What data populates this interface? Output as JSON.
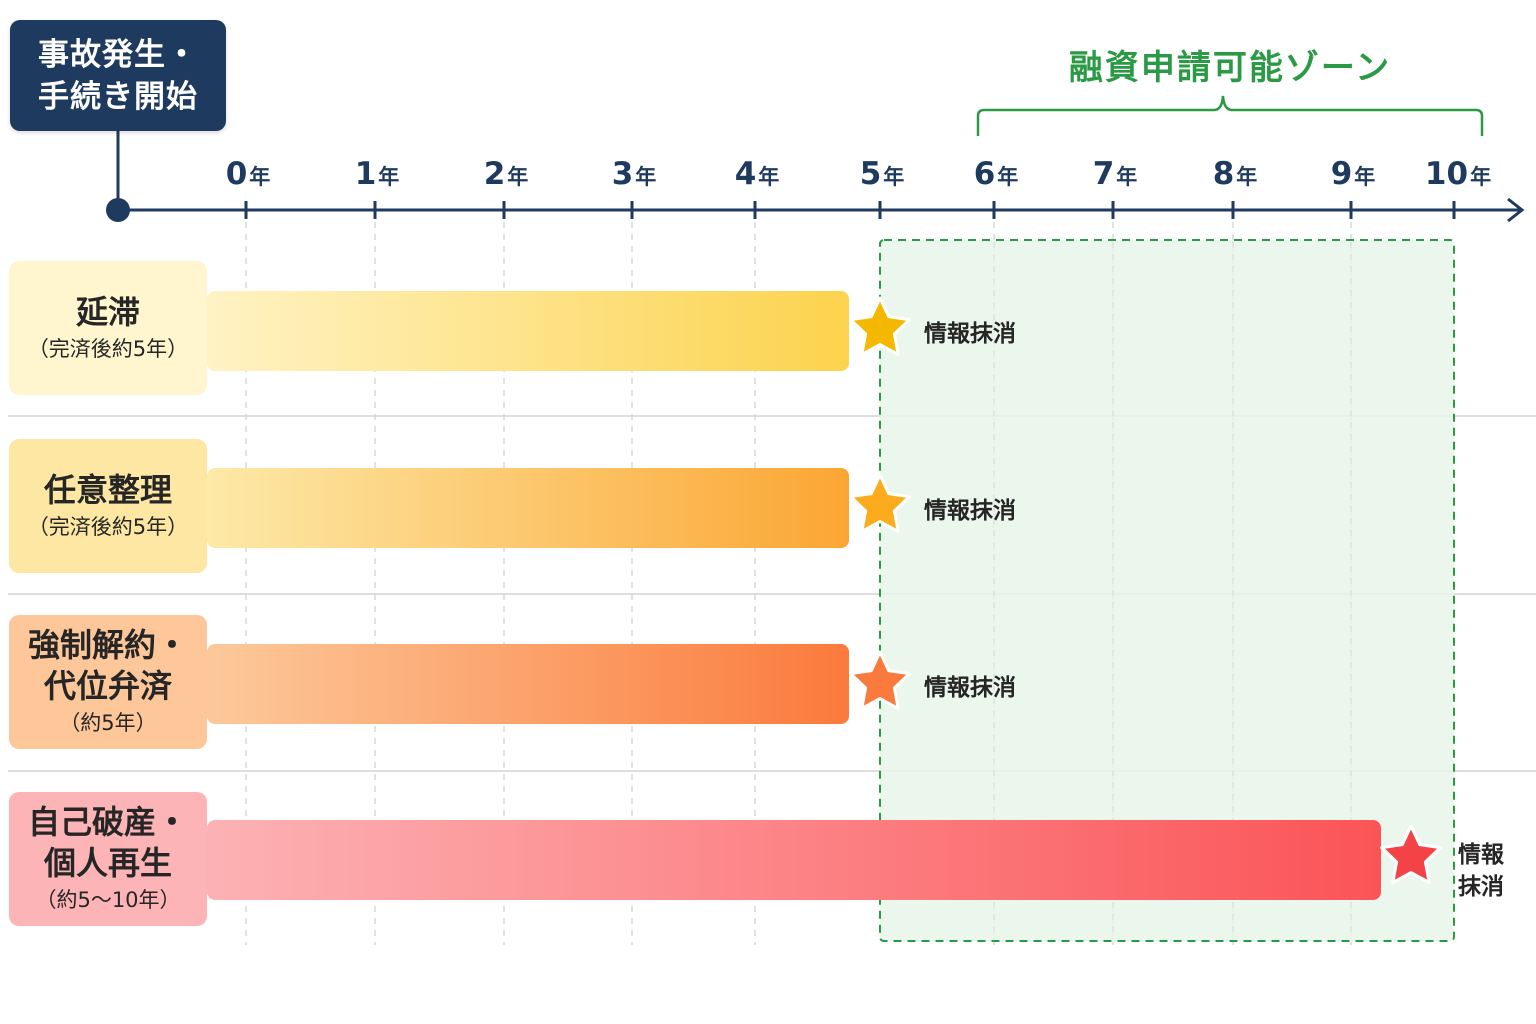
{
  "start": {
    "line1": "事故発生・",
    "line2": "手続き開始"
  },
  "zone": {
    "title": "融資申請可能ゾーン"
  },
  "axis": {
    "unit": "年",
    "ticks": [
      "0",
      "1",
      "2",
      "3",
      "4",
      "5",
      "6",
      "7",
      "8",
      "9",
      "10"
    ]
  },
  "categories": [
    {
      "name_line1": "延滞",
      "name_line2": "",
      "sub": "（完済後約5年）",
      "marker_label": "情報抹消",
      "marker_label_line1": "",
      "marker_label_line2": "",
      "color_from": "#fff3c4",
      "color_to": "#fcd34d",
      "star_color": "#f5b800",
      "box_color": "#fff6cf"
    },
    {
      "name_line1": "任意整理",
      "name_line2": "",
      "sub": "（完済後約5年）",
      "marker_label": "情報抹消",
      "marker_label_line1": "",
      "marker_label_line2": "",
      "color_from": "#fde9a8",
      "color_to": "#fba633",
      "star_color": "#fbab1c",
      "box_color": "#fde7a3"
    },
    {
      "name_line1": "強制解約・",
      "name_line2": "代位弁済",
      "sub": "（約5年）",
      "marker_label": "情報抹消",
      "marker_label_line1": "",
      "marker_label_line2": "",
      "color_from": "#fcc99a",
      "color_to": "#fb7a3c",
      "star_color": "#f97a3c",
      "box_color": "#fdc79a"
    },
    {
      "name_line1": "自己破産・",
      "name_line2": "個人再生",
      "sub": "（約5〜10年）",
      "marker_label": "",
      "marker_label_line1": "情報",
      "marker_label_line2": "抹消",
      "color_from": "#fcb2b4",
      "color_to": "#fb5457",
      "star_color": "#f44346",
      "box_color": "#fdb4b6"
    }
  ],
  "colors": {
    "axis": "#1f3a5f",
    "zone": "#2a9a45",
    "zone_fill": "#e7f6e9"
  }
}
